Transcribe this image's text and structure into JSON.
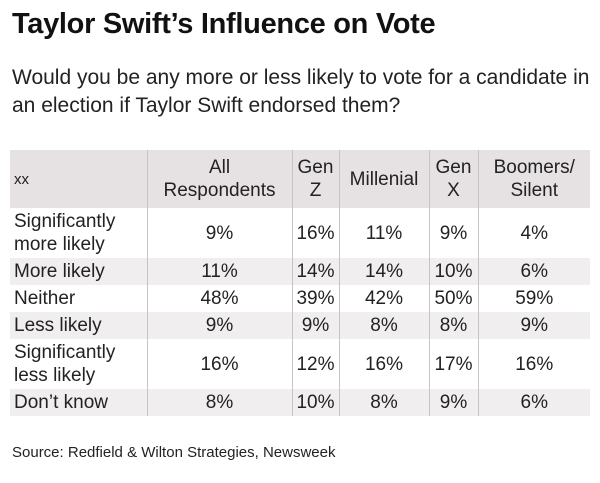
{
  "title": "Taylor Swift’s Influence on Vote",
  "subtitle": "Would you be any more or less likely to vote for a candidate in an election if Taylor Swift endorsed them?",
  "table": {
    "headers": [
      "xx",
      "All Respondents",
      "Gen Z",
      "Millenial",
      "Gen X",
      "Boomers/ Silent"
    ],
    "rows": [
      {
        "label": "Significantly more likely",
        "values": [
          "9%",
          "16%",
          "11%",
          "9%",
          "4%"
        ]
      },
      {
        "label": "More likely",
        "values": [
          "11%",
          "14%",
          "14%",
          "10%",
          "6%"
        ]
      },
      {
        "label": "Neither",
        "values": [
          "48%",
          "39%",
          "42%",
          "50%",
          "59%"
        ]
      },
      {
        "label": "Less likely",
        "values": [
          "9%",
          "9%",
          "8%",
          "8%",
          "9%"
        ]
      },
      {
        "label": "Significantly less likely",
        "values": [
          "16%",
          "12%",
          "16%",
          "17%",
          "16%"
        ]
      },
      {
        "label": "Don’t know",
        "values": [
          "8%",
          "10%",
          "8%",
          "9%",
          "6%"
        ]
      }
    ]
  },
  "source": "Source: Redfield & Wilton Strategies, Newsweek"
}
